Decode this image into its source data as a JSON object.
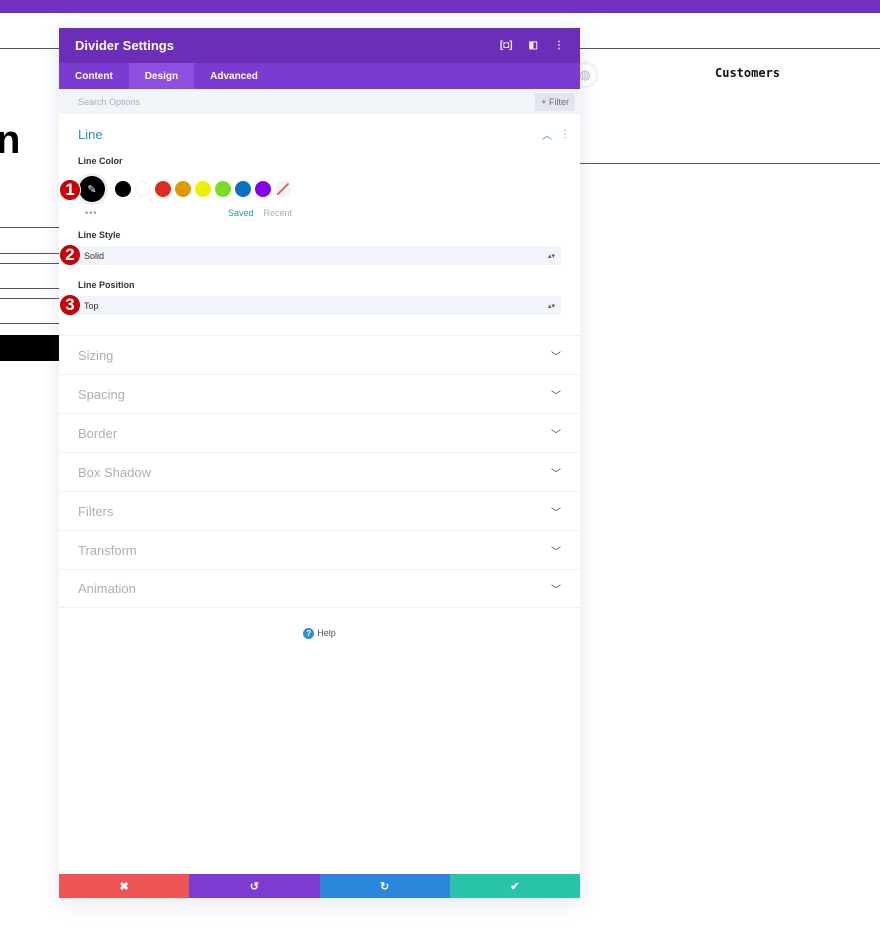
{
  "background": {
    "customers_label": "Customers",
    "partial_glyph": "n"
  },
  "panel": {
    "title": "Divider Settings",
    "header_icons": [
      "fullscreen-icon",
      "split-view-icon",
      "more-options-icon"
    ],
    "tabs": [
      {
        "label": "Content"
      },
      {
        "label": "Design",
        "active": true
      },
      {
        "label": "Advanced"
      }
    ],
    "search": {
      "placeholder": "Search Options",
      "filter_label": "+ Filter"
    },
    "line_section": {
      "title": "Line",
      "line_color_label": "Line Color",
      "swatches": [
        "#000000",
        "#ffffff",
        "#e02b20",
        "#e09900",
        "#edf000",
        "#7cda24",
        "#0c71c3",
        "#8300e9"
      ],
      "saved_label": "Saved",
      "recent_label": "Recent",
      "line_style_label": "Line Style",
      "line_style_value": "Solid",
      "line_position_label": "Line Position",
      "line_position_value": "Top"
    },
    "sections": [
      {
        "title": "Sizing"
      },
      {
        "title": "Spacing"
      },
      {
        "title": "Border"
      },
      {
        "title": "Box Shadow"
      },
      {
        "title": "Filters"
      },
      {
        "title": "Transform"
      },
      {
        "title": "Animation"
      }
    ],
    "help_label": "Help",
    "footer": {
      "cancel_color": "#ef5555",
      "undo_color": "#7e3bd0",
      "redo_color": "#2b87da",
      "save_color": "#29c4a9"
    }
  },
  "annotations": [
    "1",
    "2",
    "3"
  ]
}
